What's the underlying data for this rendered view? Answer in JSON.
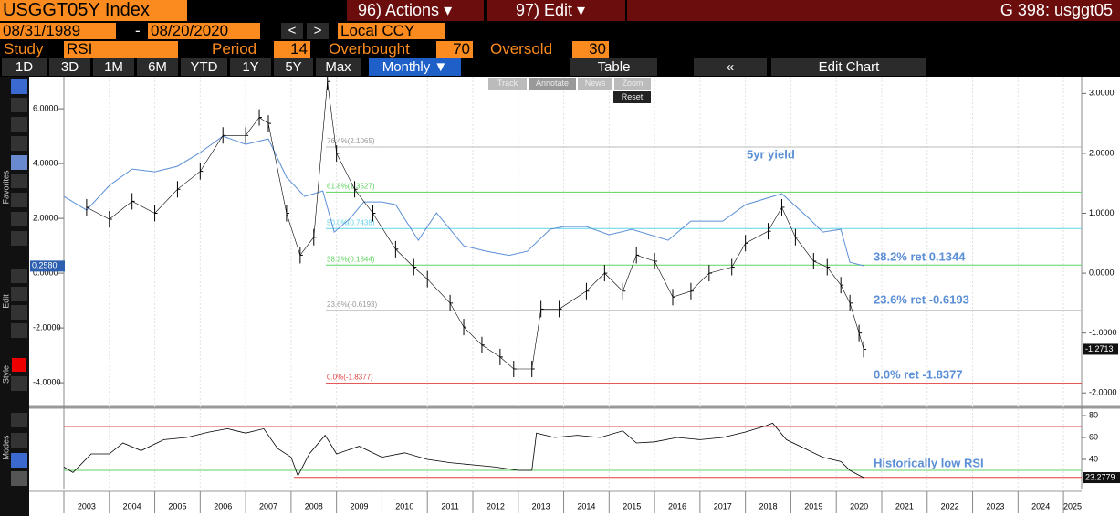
{
  "header": {
    "title": "USGGT05Y Index",
    "actions": "96) Actions",
    "edit": "97) Edit",
    "page_id": "G 398: usggt05"
  },
  "controls": {
    "start_date": "08/31/1989",
    "end_date": "08/20/2020",
    "currency": "Local CCY",
    "study_label": "Study",
    "study": "RSI",
    "period_label": "Period",
    "period": 14,
    "overbought_label": "Overbought",
    "overbought": 70,
    "oversold_label": "Oversold",
    "oversold": 30
  },
  "toolbar": {
    "ranges": [
      "1D",
      "3D",
      "1M",
      "6M",
      "YTD",
      "1Y",
      "5Y",
      "Max"
    ],
    "frequency": "Monthly",
    "table": "Table",
    "edit_chart": "Edit Chart"
  },
  "popup": {
    "track": "Track",
    "annotate": "Annotate",
    "news": "News",
    "zoom": "Zoom",
    "reset": "Reset"
  },
  "sidebar": [
    "Favorites",
    "Edit",
    "Style",
    "Modes"
  ],
  "chart_data": [
    {
      "type": "line",
      "xlim": [
        2003,
        2025.4
      ],
      "xticks": [
        {
          "value": 2003,
          "label": "2003"
        },
        {
          "value": 2004,
          "label": "2004"
        },
        {
          "value": 2005,
          "label": "2005"
        },
        {
          "value": 2006,
          "label": "2006"
        },
        {
          "value": 2007,
          "label": "2007"
        },
        {
          "value": 2008,
          "label": "2008"
        },
        {
          "value": 2009,
          "label": "2009"
        },
        {
          "value": 2010,
          "label": "2010"
        },
        {
          "value": 2011,
          "label": "2011"
        },
        {
          "value": 2012,
          "label": "2012"
        },
        {
          "value": 2013,
          "label": "2013"
        },
        {
          "value": 2014,
          "label": "2014"
        },
        {
          "value": 2015,
          "label": "2015"
        },
        {
          "value": 2016,
          "label": "2016"
        },
        {
          "value": 2017,
          "label": "2017"
        },
        {
          "value": 2018,
          "label": "2018"
        },
        {
          "value": 2019,
          "label": "2019"
        },
        {
          "value": 2020,
          "label": "2020"
        },
        {
          "value": 2021,
          "label": "2021"
        },
        {
          "value": 2022,
          "label": "2022"
        },
        {
          "value": 2023,
          "label": "2023"
        },
        {
          "value": 2024,
          "label": "2024"
        },
        {
          "value": 2025,
          "label": "2025"
        }
      ],
      "ylim": [
        -4.83,
        7.17
      ],
      "yticks": [
        {
          "value": 6,
          "label": "6.0000"
        },
        {
          "value": 4,
          "label": "4.0000"
        },
        {
          "value": 2,
          "label": "2.0000"
        },
        {
          "value": 0,
          "label": "0.0000"
        },
        {
          "value": -2,
          "label": "-2.0000"
        },
        {
          "value": -4,
          "label": "-4.0000"
        }
      ],
      "y2lim": [
        -2.21,
        3.28
      ],
      "y2ticks": [
        {
          "value": 3,
          "label": "3.0000"
        },
        {
          "value": 2,
          "label": "2.0000"
        },
        {
          "value": 1,
          "label": "1.0000"
        },
        {
          "value": 0,
          "label": "0.0000"
        },
        {
          "value": -1,
          "label": "-1.0000"
        },
        {
          "value": -2,
          "label": "-2.0000"
        }
      ],
      "series": [
        {
          "name": "5yr yield",
          "color": "#5b8fd6",
          "x": [
            2003.0,
            2003.5,
            2004.0,
            2004.5,
            2005.0,
            2005.5,
            2006.0,
            2006.5,
            2007.0,
            2007.5,
            2007.9,
            2008.3,
            2008.7,
            2008.95,
            2009.3,
            2009.6,
            2010.0,
            2010.3,
            2010.8,
            2011.2,
            2011.8,
            2012.3,
            2012.8,
            2013.2,
            2013.7,
            2014.0,
            2014.5,
            2015.0,
            2015.5,
            2016.3,
            2016.8,
            2017.5,
            2018.0,
            2018.8,
            2019.4,
            2019.7,
            2020.1,
            2020.3,
            2020.6
          ],
          "values": [
            2.8,
            2.3,
            3.2,
            3.8,
            3.7,
            3.9,
            4.4,
            5.0,
            4.7,
            4.9,
            3.5,
            2.8,
            3.0,
            1.5,
            2.0,
            2.6,
            2.6,
            2.5,
            1.2,
            2.2,
            1.0,
            0.8,
            0.65,
            0.8,
            1.6,
            1.7,
            1.7,
            1.4,
            1.6,
            1.2,
            1.9,
            1.9,
            2.5,
            2.9,
            2.0,
            1.5,
            1.6,
            0.4,
            0.27
          ],
          "last_value": {
            "value": 0.258,
            "label": "0.2580"
          }
        },
        {
          "color": "#000000",
          "axis": "y2",
          "x": [
            2003.5,
            2004.0,
            2004.5,
            2005.0,
            2005.5,
            2006.0,
            2006.5,
            2007.0,
            2007.3,
            2007.5,
            2007.9,
            2008.2,
            2008.5,
            2008.8,
            2009.0,
            2009.4,
            2009.8,
            2010.3,
            2010.7,
            2011.0,
            2011.5,
            2011.8,
            2012.2,
            2012.6,
            2012.9,
            2013.3,
            2013.5,
            2013.9,
            2014.5,
            2014.9,
            2015.3,
            2015.6,
            2016.0,
            2016.4,
            2016.8,
            2017.2,
            2017.7,
            2018.0,
            2018.5,
            2018.8,
            2019.1,
            2019.5,
            2019.8,
            2020.1,
            2020.3,
            2020.5,
            2020.6
          ],
          "values": [
            1.1,
            0.9,
            1.2,
            1.0,
            1.4,
            1.7,
            2.3,
            2.3,
            2.6,
            2.5,
            1.0,
            0.3,
            0.6,
            3.2,
            2.0,
            1.4,
            1.0,
            0.4,
            0.1,
            -0.1,
            -0.5,
            -0.9,
            -1.2,
            -1.4,
            -1.6,
            -1.6,
            -0.6,
            -0.6,
            -0.3,
            0.0,
            -0.3,
            0.3,
            0.2,
            -0.4,
            -0.3,
            0.0,
            0.1,
            0.5,
            0.7,
            1.1,
            0.6,
            0.2,
            0.1,
            -0.2,
            -0.5,
            -1.0,
            -1.2713
          ],
          "last_value": {
            "value": -1.2713,
            "label": "-1.2713"
          }
        }
      ],
      "fib_levels": [
        {
          "value": 2.1065,
          "label": "76.4%(2.1065)",
          "color": "#bbbbbb"
        },
        {
          "value": 1.3527,
          "label": "61.8%(1.3527)",
          "color": "#5fd35f"
        },
        {
          "value": 0.7438,
          "label": "50.0%(0.7438)",
          "color": "#5fd3e8"
        },
        {
          "value": 0.1344,
          "label": "38.2%(0.1344)",
          "color": "#5fd35f"
        },
        {
          "value": -0.6193,
          "label": "23.6%(-0.6193)",
          "color": "#bbbbbb"
        },
        {
          "value": -1.8377,
          "label": "0.0%(-1.8377)",
          "color": "#e04040"
        }
      ],
      "annotations": [
        "38.2% ret 0.1344",
        "23.6% ret -0.6193",
        "0.0% ret -1.8377"
      ]
    },
    {
      "type": "line",
      "xlim": [
        2003,
        2025.4
      ],
      "ylim": [
        13.3,
        84.2
      ],
      "yticks": [
        80,
        60,
        40
      ],
      "color": "#000000",
      "x": [
        2003.0,
        2003.2,
        2003.6,
        2004.0,
        2004.3,
        2004.7,
        2005.2,
        2005.7,
        2006.2,
        2006.6,
        2007.0,
        2007.4,
        2007.7,
        2008.0,
        2008.15,
        2008.4,
        2008.75,
        2009.0,
        2009.5,
        2010.0,
        2010.5,
        2011.0,
        2011.5,
        2012.0,
        2012.5,
        2013.0,
        2013.3,
        2013.4,
        2013.8,
        2014.3,
        2014.8,
        2015.3,
        2015.6,
        2016.0,
        2016.5,
        2017.0,
        2017.5,
        2018.0,
        2018.4,
        2018.6,
        2018.9,
        2019.3,
        2019.7,
        2020.1,
        2020.3,
        2020.6
      ],
      "values": [
        33,
        28,
        45,
        45,
        55,
        48,
        58,
        60,
        65,
        68,
        64,
        68,
        50,
        42,
        25,
        45,
        62,
        45,
        52,
        42,
        46,
        40,
        37,
        35,
        33,
        30,
        30,
        64,
        60,
        62,
        60,
        66,
        55,
        56,
        60,
        58,
        60,
        65,
        70,
        73,
        58,
        50,
        42,
        38,
        30,
        23.2779
      ],
      "last_value": {
        "value": 23.2779,
        "label": "23.2779"
      },
      "low_line": 23.5,
      "annotation": "Historically low RSI"
    }
  ]
}
